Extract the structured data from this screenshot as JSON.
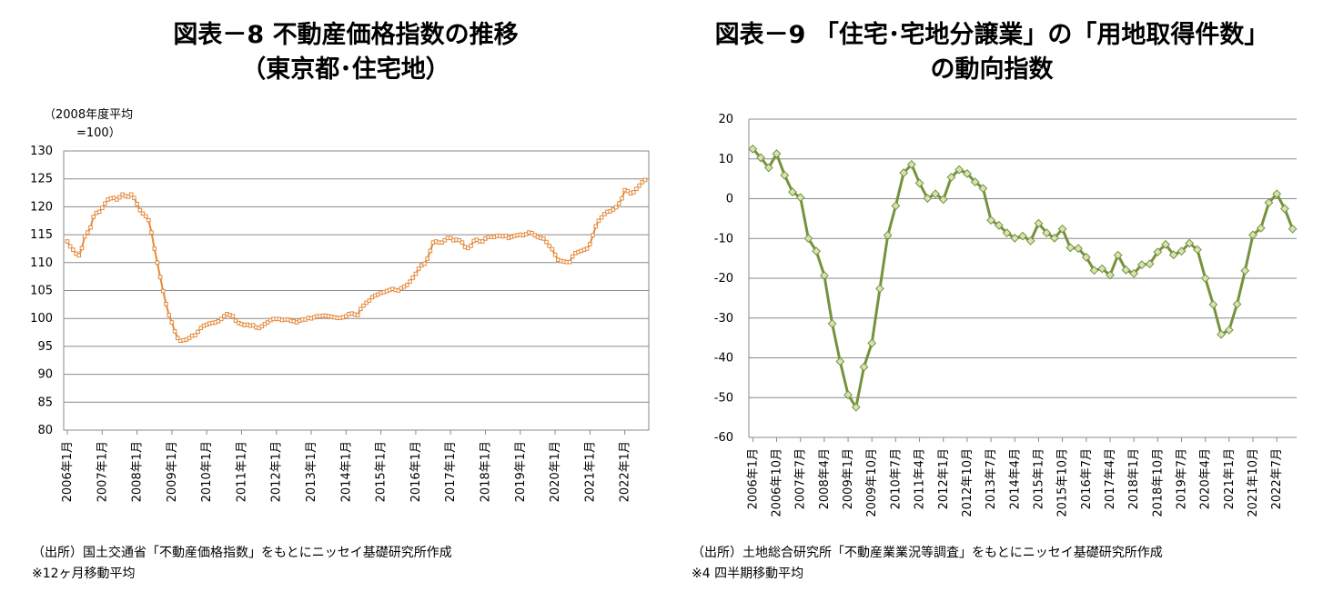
{
  "left": {
    "title_line1": "図表－8 不動産価格指数の推移",
    "title_line2": "（東京都･住宅地）",
    "unit_line1": "（2008年度平均",
    "unit_line2": "=100）",
    "source": "（出所）国土交通省「不動産価格指数」をもとにニッセイ基礎研究所作成",
    "footnote": "※12ヶ月移動平均"
  },
  "right": {
    "title_line1": "図表－9 「住宅･宅地分譲業」の「用地取得件数」",
    "title_line2": "の動向指数",
    "source": "（出所）土地総合研究所「不動産業業況等調査」をもとにニッセイ基礎研究所作成",
    "footnote": "※4 四半期移動平均"
  },
  "colors": {
    "left_series": "#E58A3C",
    "right_series": "#76923C",
    "right_marker": "#D6E3B5"
  },
  "chart_data": [
    {
      "type": "line",
      "ylim": [
        80,
        130
      ],
      "y_ticks": [
        "80",
        "85",
        "90",
        "95",
        "100",
        "105",
        "110",
        "115",
        "120",
        "125",
        "130"
      ],
      "x_tick_labels": [
        "2006年1月",
        "2007年1月",
        "2008年1月",
        "2009年1月",
        "2010年1月",
        "2011年1月",
        "2012年1月",
        "2013年1月",
        "2014年1月",
        "2015年1月",
        "2016年1月",
        "2017年1月",
        "2018年1月",
        "2019年1月",
        "2020年1月",
        "2021年1月",
        "2022年1月"
      ],
      "x_start": "2006-01",
      "series": [
        {
          "values": [
            113.8,
            112.9,
            112.3,
            111.6,
            111.3,
            112.6,
            114.7,
            115.4,
            116.3,
            118.2,
            118.9,
            119.1,
            119.8,
            120.6,
            121.3,
            121.5,
            121.6,
            121.3,
            121.7,
            122.2,
            121.9,
            121.8,
            122.2,
            121.6,
            120.5,
            119.4,
            118.8,
            118.3,
            117.6,
            115.4,
            112.5,
            110.0,
            107.4,
            104.9,
            102.6,
            100.6,
            99.3,
            97.7,
            96.5,
            96.0,
            96.1,
            96.2,
            96.5,
            96.9,
            97.0,
            97.6,
            98.3,
            98.7,
            98.9,
            99.1,
            99.2,
            99.3,
            99.5,
            99.9,
            100.4,
            100.8,
            100.6,
            100.4,
            99.6,
            99.2,
            99.0,
            98.8,
            98.9,
            98.7,
            98.8,
            98.4,
            98.3,
            98.6,
            99.0,
            99.3,
            99.7,
            99.9,
            99.9,
            99.9,
            99.7,
            99.8,
            99.8,
            99.6,
            99.5,
            99.3,
            99.6,
            99.8,
            99.8,
            100.1,
            100.0,
            100.2,
            100.4,
            100.4,
            100.5,
            100.5,
            100.4,
            100.3,
            100.2,
            100.1,
            100.1,
            100.2,
            100.4,
            100.8,
            100.9,
            100.7,
            100.6,
            101.7,
            102.3,
            102.8,
            103.2,
            103.8,
            104.1,
            104.3,
            104.6,
            104.7,
            104.9,
            105.1,
            105.3,
            105.1,
            105.0,
            105.4,
            105.7,
            106.0,
            106.6,
            107.3,
            108.0,
            108.9,
            109.5,
            109.8,
            110.7,
            112.1,
            113.6,
            113.8,
            113.6,
            113.6,
            114.0,
            114.4,
            114.4,
            114.0,
            114.1,
            114.0,
            113.6,
            112.8,
            112.6,
            113.0,
            113.9,
            114.1,
            113.8,
            113.8,
            114.3,
            114.6,
            114.6,
            114.6,
            114.8,
            114.8,
            114.7,
            114.8,
            114.4,
            114.6,
            114.8,
            114.9,
            115.0,
            114.9,
            115.1,
            115.4,
            115.3,
            114.9,
            114.6,
            114.4,
            114.3,
            113.7,
            113.0,
            112.4,
            111.4,
            110.5,
            110.3,
            110.2,
            110.1,
            110.1,
            111.1,
            111.7,
            111.9,
            112.1,
            112.3,
            112.5,
            113.3,
            114.9,
            116.5,
            117.5,
            118.1,
            118.7,
            119.1,
            119.2,
            119.5,
            119.9,
            120.6,
            121.5,
            123.0,
            122.8,
            122.4,
            122.6,
            123.2,
            123.8,
            124.4,
            124.8
          ]
        }
      ]
    },
    {
      "type": "line",
      "ylim": [
        -60,
        20
      ],
      "y_ticks": [
        "-60",
        "-50",
        "-40",
        "-30",
        "-20",
        "-10",
        "0",
        "10",
        "20"
      ],
      "x_tick_labels": [
        "2006年1月",
        "2006年10月",
        "2007年7月",
        "2008年4月",
        "2009年1月",
        "2009年10月",
        "2010年7月",
        "2011年4月",
        "2012年1月",
        "2012年10月",
        "2013年7月",
        "2014年4月",
        "2015年1月",
        "2015年10月",
        "2016年7月",
        "2017年4月",
        "2018年1月",
        "2018年10月",
        "2019年7月",
        "2020年4月",
        "2021年1月",
        "2021年10月",
        "2022年7月"
      ],
      "x_start": "2006-01",
      "series": [
        {
          "values": [
            12.5,
            10.3,
            7.8,
            11.3,
            5.9,
            1.7,
            0.3,
            -10.0,
            -13.2,
            -19.3,
            -31.4,
            -40.9,
            -49.3,
            -52.4,
            -42.3,
            -36.3,
            -22.6,
            -9.2,
            -1.8,
            6.5,
            8.6,
            3.9,
            0.1,
            1.2,
            -0.2,
            5.4,
            7.3,
            6.3,
            4.2,
            2.6,
            -5.4,
            -6.7,
            -8.6,
            -9.9,
            -9.4,
            -10.6,
            -6.2,
            -8.6,
            -9.9,
            -7.6,
            -12.3,
            -12.5,
            -14.7,
            -18.0,
            -17.6,
            -19.2,
            -14.2,
            -17.9,
            -18.8,
            -16.6,
            -16.4,
            -13.4,
            -11.5,
            -14.1,
            -13.2,
            -11.2,
            -12.8,
            -20.0,
            -26.6,
            -34.1,
            -33.0,
            -26.5,
            -18.1,
            -9.1,
            -7.4,
            -1.0,
            1.2,
            -2.5,
            -7.6
          ]
        }
      ]
    }
  ]
}
